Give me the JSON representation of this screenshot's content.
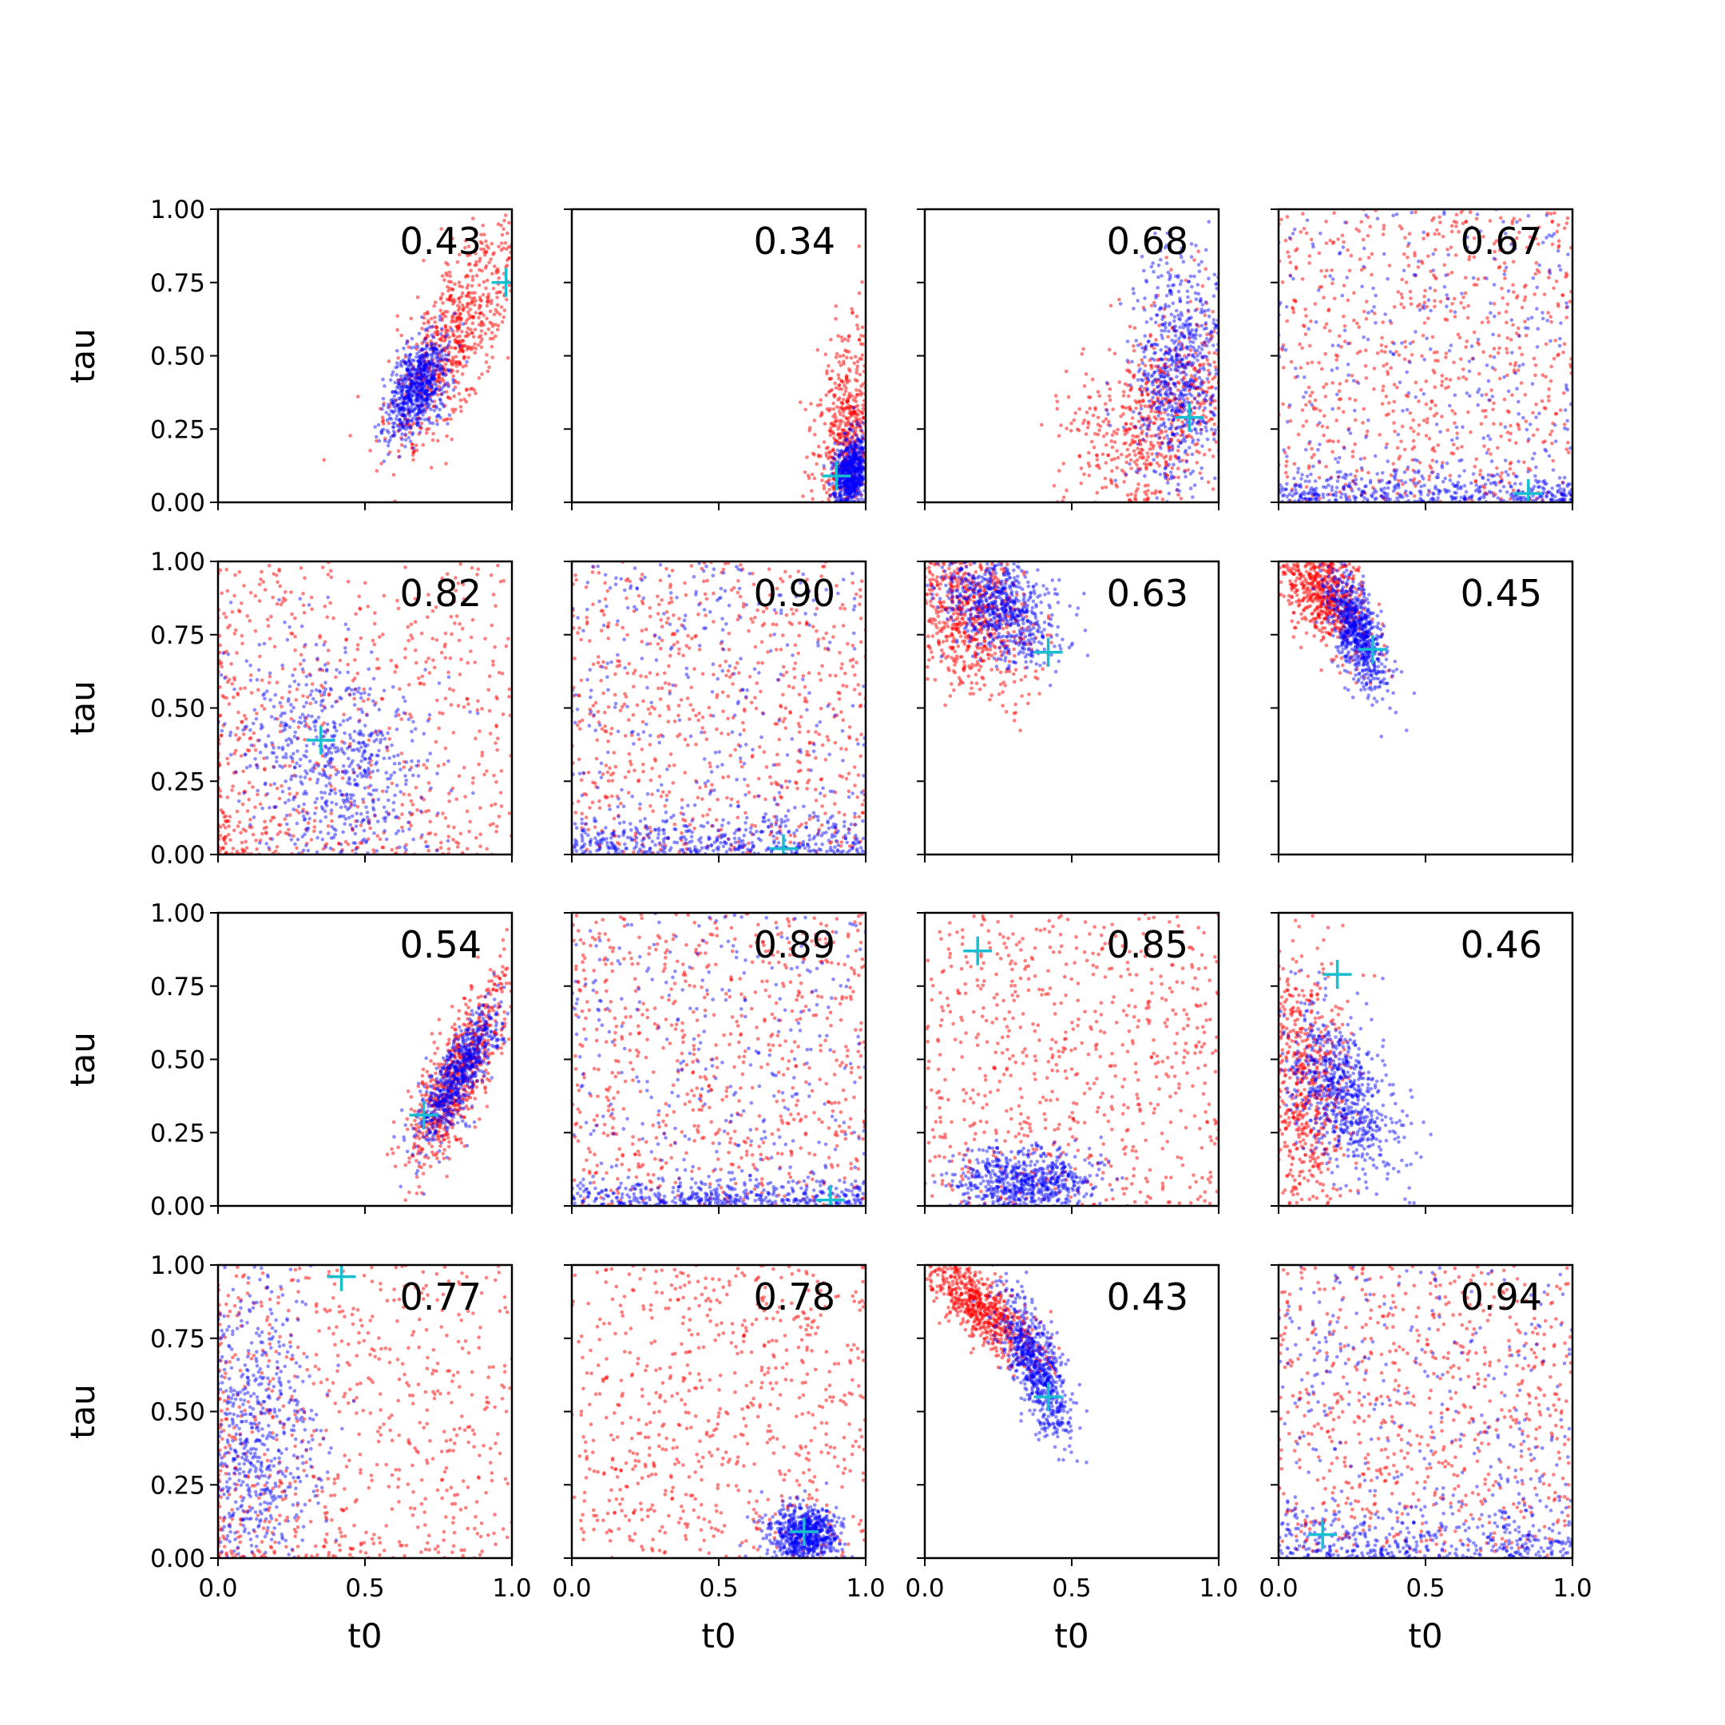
{
  "chart_data": {
    "type": "scatter",
    "layout": "4x4 grid of panels",
    "xlabel": "t0",
    "ylabel": "tau",
    "xlim": [
      0,
      1
    ],
    "ylim": [
      0,
      1
    ],
    "xticks": [
      "0.0",
      "0.5",
      "1.0"
    ],
    "yticks": [
      "0.00",
      "0.25",
      "0.50",
      "0.75",
      "1.00"
    ],
    "grid": false,
    "legend": "none",
    "colors": {
      "series_a": "#ff0000",
      "series_b": "#0000ff",
      "marker": "#17becf"
    },
    "panels": [
      {
        "label": "0.43",
        "marker": [
          0.98,
          0.75
        ],
        "red": {
          "dist": "gauss",
          "cx": 0.8,
          "cy": 0.55,
          "sx": 0.11,
          "sy": 0.2,
          "rho": 0.75
        },
        "blue": {
          "dist": "gauss",
          "cx": 0.68,
          "cy": 0.4,
          "sx": 0.05,
          "sy": 0.09,
          "rho": 0.5
        }
      },
      {
        "label": "0.34",
        "marker": [
          0.9,
          0.09
        ],
        "red": {
          "dist": "gauss",
          "cx": 0.94,
          "cy": 0.22,
          "sx": 0.06,
          "sy": 0.22,
          "rho": 0.4
        },
        "blue": {
          "dist": "gauss",
          "cx": 0.95,
          "cy": 0.1,
          "sx": 0.03,
          "sy": 0.06,
          "rho": 0.3
        }
      },
      {
        "label": "0.68",
        "marker": [
          0.9,
          0.29
        ],
        "red": {
          "dist": "gauss",
          "cx": 0.8,
          "cy": 0.3,
          "sx": 0.15,
          "sy": 0.18,
          "rho": 0.4
        },
        "blue": {
          "dist": "gauss",
          "cx": 0.87,
          "cy": 0.45,
          "sx": 0.08,
          "sy": 0.2,
          "rho": 0.1
        }
      },
      {
        "label": "0.67",
        "marker": [
          0.85,
          0.03
        ],
        "red": {
          "dist": "uniform"
        },
        "blue": {
          "dist": "lowband",
          "cy": 0.05
        }
      },
      {
        "label": "0.82",
        "marker": [
          0.35,
          0.39
        ],
        "red": {
          "dist": "uniform_lowleft"
        },
        "blue": {
          "dist": "gauss",
          "cx": 0.4,
          "cy": 0.3,
          "sx": 0.18,
          "sy": 0.2,
          "rho": -0.3
        }
      },
      {
        "label": "0.90",
        "marker": [
          0.72,
          0.02
        ],
        "red": {
          "dist": "uniform"
        },
        "blue": {
          "dist": "lowband",
          "cy": 0.06
        }
      },
      {
        "label": "0.63",
        "marker": [
          0.42,
          0.69
        ],
        "red": {
          "dist": "gauss",
          "cx": 0.15,
          "cy": 0.82,
          "sx": 0.1,
          "sy": 0.13,
          "rho": -0.3
        },
        "blue": {
          "dist": "gauss",
          "cx": 0.25,
          "cy": 0.85,
          "sx": 0.1,
          "sy": 0.1,
          "rho": -0.4
        }
      },
      {
        "label": "0.45",
        "marker": [
          0.32,
          0.7
        ],
        "red": {
          "dist": "gauss",
          "cx": 0.15,
          "cy": 0.9,
          "sx": 0.08,
          "sy": 0.1,
          "rho": -0.5
        },
        "blue": {
          "dist": "gauss",
          "cx": 0.27,
          "cy": 0.75,
          "sx": 0.05,
          "sy": 0.1,
          "rho": -0.6
        }
      },
      {
        "label": "0.54",
        "marker": [
          0.7,
          0.31
        ],
        "red": {
          "dist": "gauss",
          "cx": 0.82,
          "cy": 0.45,
          "sx": 0.09,
          "sy": 0.17,
          "rho": 0.8
        },
        "blue": {
          "dist": "gauss",
          "cx": 0.82,
          "cy": 0.45,
          "sx": 0.07,
          "sy": 0.12,
          "rho": 0.8
        }
      },
      {
        "label": "0.89",
        "marker": [
          0.88,
          0.02
        ],
        "red": {
          "dist": "uniform"
        },
        "blue": {
          "dist": "lowband",
          "cy": 0.05
        }
      },
      {
        "label": "0.85",
        "marker": [
          0.18,
          0.87
        ],
        "red": {
          "dist": "uniform"
        },
        "blue": {
          "dist": "gauss",
          "cx": 0.35,
          "cy": 0.08,
          "sx": 0.12,
          "sy": 0.06,
          "rho": 0.0
        }
      },
      {
        "label": "0.46",
        "marker": [
          0.2,
          0.79
        ],
        "red": {
          "dist": "gauss",
          "cx": 0.08,
          "cy": 0.4,
          "sx": 0.08,
          "sy": 0.22,
          "rho": 0.0
        },
        "blue": {
          "dist": "gauss",
          "cx": 0.22,
          "cy": 0.38,
          "sx": 0.09,
          "sy": 0.14,
          "rho": -0.5
        }
      },
      {
        "label": "0.77",
        "marker": [
          0.42,
          0.96
        ],
        "red": {
          "dist": "uniform_lowleft"
        },
        "blue": {
          "dist": "gauss",
          "cx": 0.12,
          "cy": 0.4,
          "sx": 0.12,
          "sy": 0.28,
          "rho": 0.0
        }
      },
      {
        "label": "0.78",
        "marker": [
          0.79,
          0.09
        ],
        "red": {
          "dist": "uniform"
        },
        "blue": {
          "dist": "gauss",
          "cx": 0.79,
          "cy": 0.08,
          "sx": 0.06,
          "sy": 0.05,
          "rho": 0.0
        }
      },
      {
        "label": "0.43",
        "marker": [
          0.42,
          0.55
        ],
        "red": {
          "dist": "gauss",
          "cx": 0.2,
          "cy": 0.85,
          "sx": 0.1,
          "sy": 0.1,
          "rho": -0.8
        },
        "blue": {
          "dist": "gauss",
          "cx": 0.38,
          "cy": 0.65,
          "sx": 0.06,
          "sy": 0.12,
          "rho": -0.7
        }
      },
      {
        "label": "0.94",
        "marker": [
          0.15,
          0.08
        ],
        "red": {
          "dist": "uniform"
        },
        "blue": {
          "dist": "lowband",
          "cy": 0.08
        }
      }
    ]
  }
}
